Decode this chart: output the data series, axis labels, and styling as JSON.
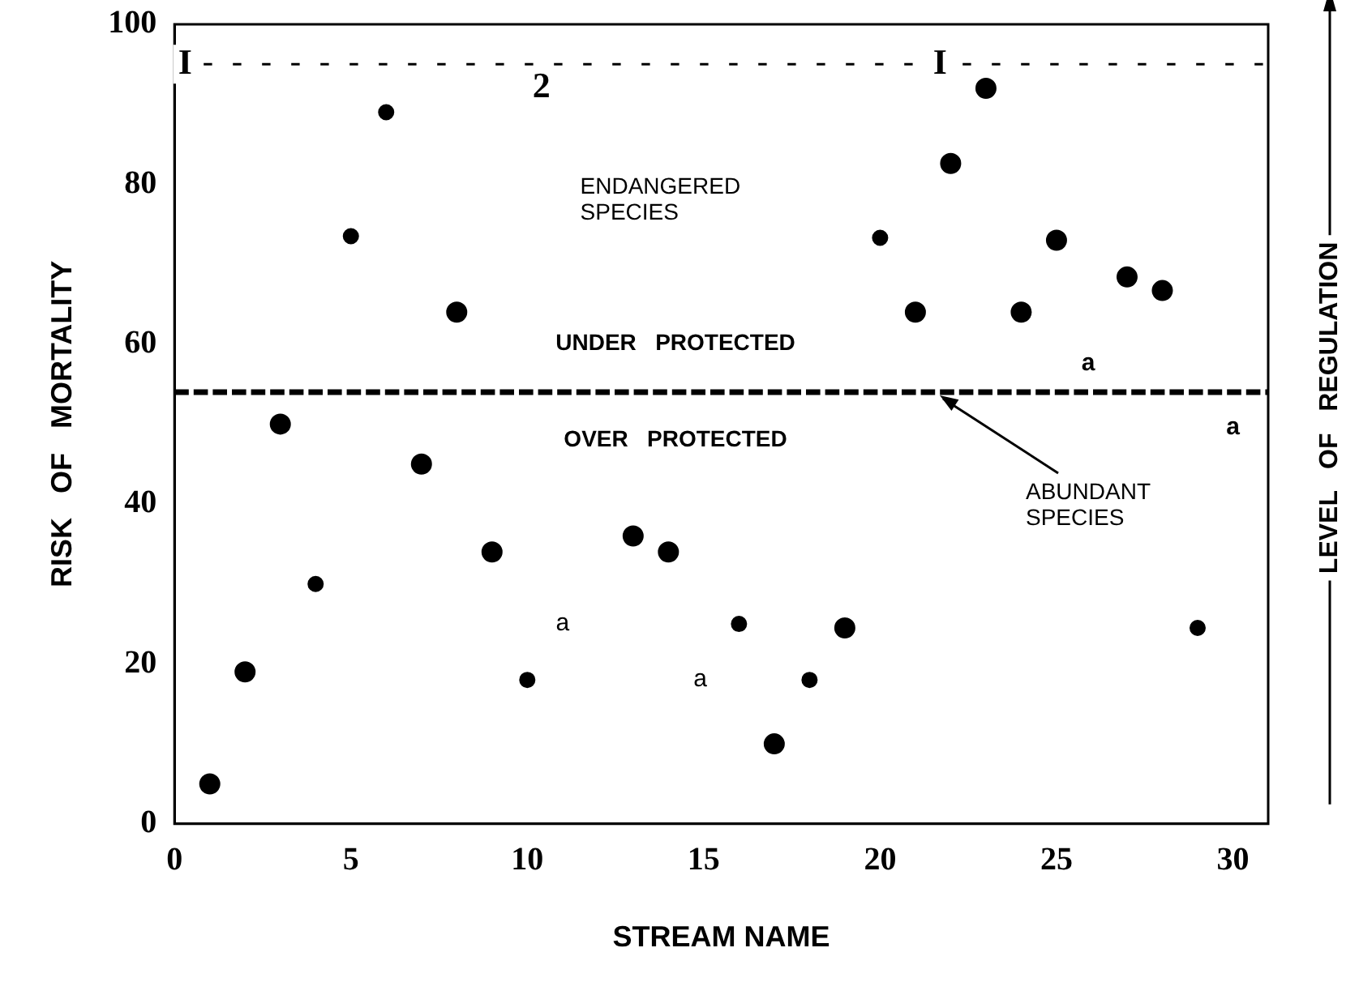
{
  "chart_data": {
    "type": "scatter",
    "xlabel": "STREAM NAME",
    "ylabel": "RISK OF MORTALITY",
    "xlim": [
      0,
      31
    ],
    "xticks": [
      0,
      5,
      10,
      15,
      20,
      25,
      30
    ],
    "ylim": [
      0,
      100
    ],
    "yticks": [
      0,
      20,
      40,
      60,
      80,
      100
    ],
    "grid": false,
    "legend": false,
    "marker": "circle",
    "series": [
      {
        "color": "#000000",
        "x": [
          1,
          2,
          3,
          7,
          8,
          9,
          13,
          14,
          17,
          19,
          21,
          22,
          23,
          24,
          25,
          27,
          28
        ],
        "values": [
          5,
          19,
          50,
          45,
          64,
          34,
          36,
          34,
          10,
          24.5,
          64,
          82.6,
          92,
          64,
          73,
          68.4,
          66.7
        ]
      },
      {
        "color": "#000000",
        "x": [
          4,
          5,
          6,
          10,
          16,
          18,
          20,
          29
        ],
        "values": [
          30,
          73.5,
          89,
          18,
          25,
          18,
          73.3,
          24.5
        ]
      }
    ],
    "ref_lines": [
      {
        "axis": "y",
        "value": 54,
        "line_style": "dashed",
        "color": "#000000"
      },
      {
        "axis": "y",
        "value": 95,
        "line_style": "dashed",
        "color": "#000000"
      }
    ],
    "annotations": [
      {
        "text": "I",
        "x": 0.3,
        "y": 95
      },
      {
        "text": "I",
        "x": 21.7,
        "y": 95
      },
      {
        "text": "ABUNDANT SPECIES",
        "x": 21.6,
        "y": 54
      },
      "2",
      "ENDANGERED SPECIES",
      "UNDER PROTECTED",
      "OVER PROTECTED",
      "a",
      "a",
      "a",
      "a",
      "LEVEL OF REGULATION"
    ]
  }
}
